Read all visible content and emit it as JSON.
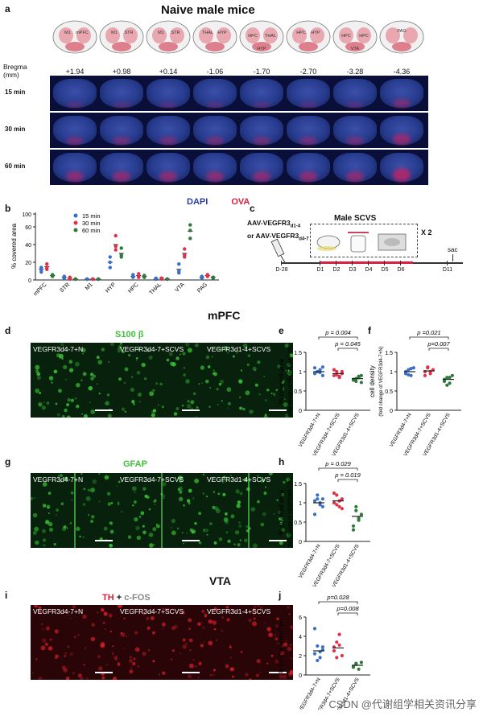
{
  "panels": {
    "a": {
      "label": "a",
      "title": "Naive male mice",
      "atlas_regions": [
        [
          "M1",
          "mPFC"
        ],
        [
          "M1",
          "STR"
        ],
        [
          "M1",
          "STR"
        ],
        [
          "THAL",
          "HYP"
        ],
        [
          "HPC",
          "THAL",
          "HYP"
        ],
        [
          "HPC",
          "HYP"
        ],
        [
          "HPC",
          "HPC",
          "VTA"
        ],
        [
          "PAG"
        ]
      ],
      "bregma_label": "Bregma",
      "bregma_unit": "(mm)",
      "bregma_values": [
        "+1.94",
        "+0.98",
        "+0.14",
        "-1.06",
        "-1.70",
        "-2.70",
        "-3.28",
        "-4.36"
      ],
      "rows": [
        "15 min",
        "30 min",
        "60 min"
      ],
      "legend": {
        "dapi": "DAPI",
        "ova": "OVA"
      }
    },
    "b": {
      "label": "b"
    },
    "c": {
      "label": "c",
      "virus_line1": "AAV-VEGFR3",
      "virus_sub1": "d1-4",
      "virus_or": "or AAV-VEGFR3",
      "virus_sub2": "d4-7",
      "stress_title": "Male SCVS",
      "repeat": "X 2",
      "days": [
        "D-28",
        "D1",
        "D2",
        "D3",
        "D4",
        "D5",
        "D6",
        "D11"
      ],
      "sac": "sac"
    },
    "mpfc_title": "mPFC",
    "vta_title": "VTA",
    "d": {
      "label": "d",
      "stain": "S100 β",
      "images": [
        "VEGFR3d4-7+N",
        "VEGFR3d4-7+SCVS",
        "VEGFR3d1-4+SCVS"
      ]
    },
    "g": {
      "label": "g",
      "stain": "GFAP",
      "images": [
        "VEGFR3d4-7+N",
        "VEGFR3d4-7+SCVS",
        "VEGFR3d1-4+SCVS"
      ]
    },
    "i": {
      "label": "i",
      "stain_red": "TH",
      "stain_plus": " + ",
      "stain_grey": "c-FOS",
      "images": [
        "VEGFR3d4-7+N",
        "VEGFR3d4-7+SCVS",
        "VEGFR3d1-4+SCVS"
      ]
    },
    "e": {
      "label": "e"
    },
    "f": {
      "label": "f"
    },
    "h": {
      "label": "h"
    },
    "j": {
      "label": "j"
    }
  },
  "watermark": "CSDN @代谢组学相关资讯分享",
  "chart_data": [
    {
      "id": "b",
      "type": "scatter",
      "ylabel": "% covered area",
      "categories": [
        "mPFC",
        "STR",
        "M1",
        "HYP",
        "HPC",
        "THAL",
        "VTA",
        "PAG"
      ],
      "y_ticks": [
        0,
        20,
        40,
        60,
        100
      ],
      "legend_position": "top-left",
      "series": [
        {
          "name": "15 min",
          "color": "#3a6fc9",
          "means": [
            12,
            3,
            1,
            20,
            4,
            1,
            12,
            3
          ],
          "points": [
            [
              14,
              12,
              9
            ],
            [
              2,
              4,
              2
            ],
            [
              1,
              1,
              1
            ],
            [
              26,
              14,
              20
            ],
            [
              3,
              6,
              4
            ],
            [
              1,
              2,
              1
            ],
            [
              18,
              8,
              10
            ],
            [
              4,
              2,
              3
            ]
          ]
        },
        {
          "name": "30 min",
          "color": "#e0304a",
          "means": [
            15,
            2,
            1,
            40,
            5,
            2,
            30,
            5
          ],
          "points": [
            [
              18,
              14,
              12
            ],
            [
              3,
              2,
              1
            ],
            [
              1,
              1,
              1
            ],
            [
              50,
              38,
              34
            ],
            [
              7,
              4,
              3
            ],
            [
              2,
              2,
              1
            ],
            [
              35,
              28,
              26
            ],
            [
              6,
              4,
              5
            ]
          ]
        },
        {
          "name": "60 min",
          "color": "#2e7a3a",
          "means": [
            5,
            1,
            1,
            30,
            4,
            1,
            55,
            3
          ],
          "points": [
            [
              6,
              4,
              5
            ],
            [
              1,
              1,
              1
            ],
            [
              1,
              1,
              1
            ],
            [
              36,
              28,
              26
            ],
            [
              5,
              3,
              4
            ],
            [
              1,
              1,
              1
            ],
            [
              66,
              56,
              47
            ],
            [
              3,
              2,
              3
            ]
          ]
        }
      ]
    },
    {
      "id": "e",
      "type": "scatter",
      "ylabel": "% covered area",
      "ylabel2": "(fold change of VEGFR3d4-7+N)",
      "categories": [
        "VEGFR3d4-7+N",
        "VEGFR3d4-7+SCVS",
        "VEGFR3d1-4+SCVS"
      ],
      "ylim": [
        0,
        1.5
      ],
      "series": [
        {
          "name": "VEGFR3d4-7+N",
          "color": "#3a6fc9",
          "mean": 1.0,
          "points": [
            0.95,
            1.0,
            1.05,
            0.9,
            1.1,
            1.0,
            0.98,
            1.12
          ]
        },
        {
          "name": "VEGFR3d4-7+SCVS",
          "color": "#e0304a",
          "mean": 0.95,
          "points": [
            0.9,
            1.0,
            0.85,
            0.95,
            1.05,
            0.92,
            0.88,
            1.0
          ]
        },
        {
          "name": "VEGFR3d1-4+SCVS",
          "color": "#2e7a3a",
          "mean": 0.82,
          "points": [
            0.8,
            0.75,
            0.85,
            0.9,
            0.78,
            0.82,
            0.88,
            0.72
          ]
        }
      ],
      "stats": [
        {
          "text": "p = 0.004",
          "from": 0,
          "to": 2
        },
        {
          "text": "p = 0.045",
          "from": 1,
          "to": 2
        }
      ]
    },
    {
      "id": "f",
      "type": "scatter",
      "ylabel": "cell density",
      "ylabel2": "(fold change of VEGFR3d4-7+N)",
      "categories": [
        "VEGFR3d4-7+N",
        "VEGFR3d4-7+SCVS",
        "VEGFR3d1-4+SCVS"
      ],
      "ylim": [
        0,
        1.5
      ],
      "series": [
        {
          "name": "VEGFR3d4-7+N",
          "color": "#3a6fc9",
          "mean": 1.0,
          "points": [
            0.95,
            1.05,
            0.9,
            1.1,
            1.0,
            0.92,
            1.08
          ]
        },
        {
          "name": "VEGFR3d4-7+SCVS",
          "color": "#e0304a",
          "mean": 1.02,
          "points": [
            1.0,
            1.1,
            0.95,
            1.05,
            0.9,
            1.12,
            1.0
          ]
        },
        {
          "name": "VEGFR3d1-4+SCVS",
          "color": "#2e7a3a",
          "mean": 0.8,
          "points": [
            0.75,
            0.85,
            0.7,
            0.9,
            0.8,
            0.65,
            0.85
          ]
        }
      ],
      "stats": [
        {
          "text": "p =0.021",
          "from": 0,
          "to": 2
        },
        {
          "text": "p=0.007",
          "from": 1,
          "to": 2
        }
      ]
    },
    {
      "id": "h",
      "type": "scatter",
      "ylabel": "% covered area",
      "ylabel2": "(fold change of VEGFR3d4-7+N)",
      "categories": [
        "VEGFR3d4-7+N",
        "VEGFR3d4-7+SCVS",
        "VEGFR3d1-4+SCVS"
      ],
      "ylim": [
        0,
        1.5
      ],
      "series": [
        {
          "name": "VEGFR3d4-7+N",
          "color": "#3a6fc9",
          "mean": 1.0,
          "points": [
            0.7,
            1.1,
            1.0,
            0.9,
            1.05,
            1.2,
            0.95,
            1.1
          ]
        },
        {
          "name": "VEGFR3d4-7+SCVS",
          "color": "#e0304a",
          "mean": 1.05,
          "points": [
            1.0,
            1.2,
            0.9,
            1.1,
            1.25,
            0.95,
            1.05,
            0.85
          ]
        },
        {
          "name": "VEGFR3d1-4+SCVS",
          "color": "#2e7a3a",
          "mean": 0.65,
          "points": [
            0.4,
            0.9,
            0.6,
            0.7,
            0.3,
            0.8,
            0.55
          ]
        }
      ],
      "stats": [
        {
          "text": "p = 0.029",
          "from": 0,
          "to": 2
        },
        {
          "text": "p = 0.019",
          "from": 1,
          "to": 2
        }
      ]
    },
    {
      "id": "j",
      "type": "scatter",
      "ylabel": "% c-FOS+TH+/TH+",
      "categories": [
        "VEGFR3d4-7+N",
        "VEGFR3d4-7+SCVS",
        "VEGFR3d1-4+SCVS"
      ],
      "ylim": [
        0,
        6
      ],
      "series": [
        {
          "name": "VEGFR3d4-7+N",
          "color": "#3a6fc9",
          "mean": 2.5,
          "points": [
            2.2,
            3.0,
            1.8,
            2.6,
            4.8,
            1.5,
            2.4,
            2.9
          ]
        },
        {
          "name": "VEGFR3d4-7+SCVS",
          "color": "#e0304a",
          "mean": 2.8,
          "points": [
            2.5,
            3.4,
            4.2,
            2.0,
            2.9,
            1.8,
            3.1
          ]
        },
        {
          "name": "VEGFR3d1-4+SCVS",
          "color": "#2e7a3a",
          "mean": 1.0,
          "points": [
            0.8,
            1.2,
            0.6,
            1.3,
            0.9,
            1.1
          ]
        }
      ],
      "stats": [
        {
          "text": "p=0.028",
          "from": 0,
          "to": 2
        },
        {
          "text": "p=0.008",
          "from": 1,
          "to": 2
        }
      ]
    }
  ]
}
